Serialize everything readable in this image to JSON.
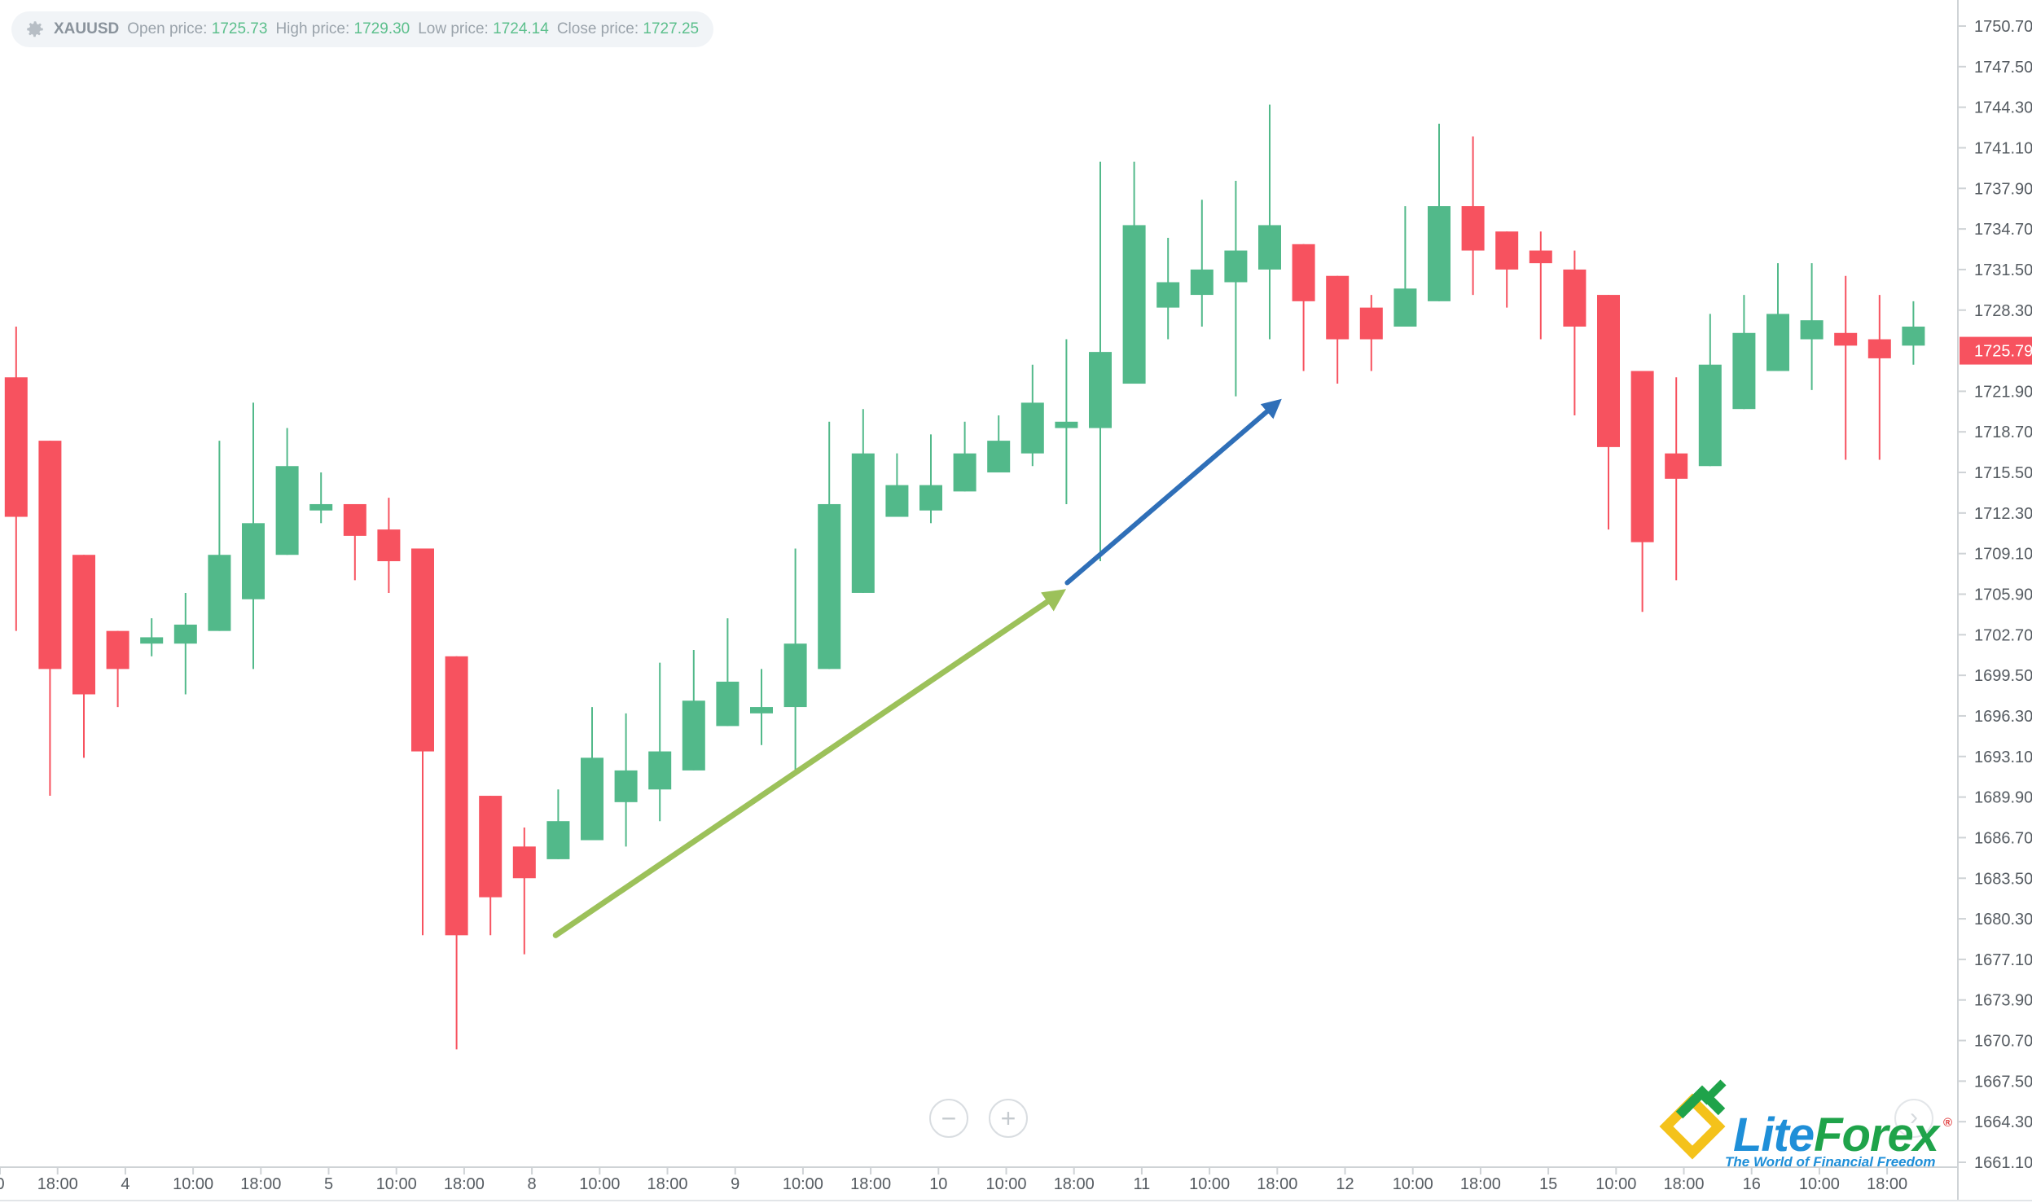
{
  "header": {
    "symbol": "XAUUSD",
    "open_label": "Open price:",
    "open_value": "1725.73",
    "high_label": "High price:",
    "high_value": "1729.30",
    "low_label": "Low price:",
    "low_value": "1724.14",
    "close_label": "Close price:",
    "close_value": "1727.25"
  },
  "colors": {
    "bull": "#52b98a",
    "bear": "#f7525f",
    "green_arrow": "#9cc15a",
    "blue_arrow": "#2f6fb8",
    "axis_text": "#555b61",
    "axis_line": "#cfd3d6"
  },
  "zoom": {
    "minus": "−",
    "plus": "+"
  },
  "nav": {
    "next": "›"
  },
  "brand": {
    "name_a": "Lite",
    "name_b": "Forex",
    "registered": "®",
    "tagline": "The World of Financial Freedom"
  },
  "chart_data": {
    "type": "candlestick",
    "y_axis": {
      "min": 1661.1,
      "max": 1750.7,
      "ticks": [
        "1750.70",
        "1747.50",
        "1744.30",
        "1741.10",
        "1737.90",
        "1734.70",
        "1731.50",
        "1728.30",
        "1725.79",
        "1721.90",
        "1718.70",
        "1715.50",
        "1712.30",
        "1709.10",
        "1705.90",
        "1702.70",
        "1699.50",
        "1696.30",
        "1693.10",
        "1689.90",
        "1686.70",
        "1683.50",
        "1680.30",
        "1677.10",
        "1673.90",
        "1670.70",
        "1667.50",
        "1664.30",
        "1661.10"
      ],
      "current_price": "1725.79",
      "current_price_value": 1725.79
    },
    "x_axis": {
      "labels": [
        "0",
        "18:00",
        "4",
        "10:00",
        "18:00",
        "5",
        "10:00",
        "18:00",
        "8",
        "10:00",
        "18:00",
        "9",
        "10:00",
        "18:00",
        "10",
        "10:00",
        "18:00",
        "11",
        "10:00",
        "18:00",
        "12",
        "10:00",
        "18:00",
        "15",
        "10:00",
        "18:00",
        "16",
        "10:00",
        "18:00"
      ],
      "label_slots": [
        0,
        1.7,
        3.7,
        5.7,
        7.7,
        9.7,
        11.7,
        13.7,
        15.7,
        17.7,
        19.7,
        21.7,
        23.7,
        25.7,
        27.7,
        29.7,
        31.7,
        33.7,
        35.7,
        37.7,
        39.7,
        41.7,
        43.7,
        45.7,
        47.7,
        49.7,
        51.7,
        53.7,
        55.7
      ]
    },
    "candles": [
      {
        "o": 1723.0,
        "h": 1727.0,
        "l": 1703.0,
        "c": 1712.0
      },
      {
        "o": 1718.0,
        "h": 1718.0,
        "l": 1690.0,
        "c": 1700.0
      },
      {
        "o": 1709.0,
        "h": 1709.0,
        "l": 1693.0,
        "c": 1698.0
      },
      {
        "o": 1703.0,
        "h": 1703.0,
        "l": 1697.0,
        "c": 1700.0
      },
      {
        "o": 1702.0,
        "h": 1704.0,
        "l": 1701.0,
        "c": 1702.5
      },
      {
        "o": 1702.0,
        "h": 1706.0,
        "l": 1698.0,
        "c": 1703.5
      },
      {
        "o": 1703.0,
        "h": 1718.0,
        "l": 1703.0,
        "c": 1709.0
      },
      {
        "o": 1705.5,
        "h": 1721.0,
        "l": 1700.0,
        "c": 1711.5
      },
      {
        "o": 1709.0,
        "h": 1719.0,
        "l": 1709.0,
        "c": 1716.0
      },
      {
        "o": 1712.5,
        "h": 1715.5,
        "l": 1711.5,
        "c": 1713.0
      },
      {
        "o": 1713.0,
        "h": 1713.0,
        "l": 1707.0,
        "c": 1710.5
      },
      {
        "o": 1711.0,
        "h": 1713.5,
        "l": 1706.0,
        "c": 1708.5
      },
      {
        "o": 1709.5,
        "h": 1709.5,
        "l": 1679.0,
        "c": 1693.5
      },
      {
        "o": 1701.0,
        "h": 1701.0,
        "l": 1670.0,
        "c": 1679.0
      },
      {
        "o": 1690.0,
        "h": 1690.0,
        "l": 1679.0,
        "c": 1682.0
      },
      {
        "o": 1686.0,
        "h": 1687.5,
        "l": 1677.5,
        "c": 1683.5
      },
      {
        "o": 1685.0,
        "h": 1690.5,
        "l": 1685.0,
        "c": 1688.0
      },
      {
        "o": 1686.5,
        "h": 1697.0,
        "l": 1686.5,
        "c": 1693.0
      },
      {
        "o": 1689.5,
        "h": 1696.5,
        "l": 1686.0,
        "c": 1692.0
      },
      {
        "o": 1690.5,
        "h": 1700.5,
        "l": 1688.0,
        "c": 1693.5
      },
      {
        "o": 1692.0,
        "h": 1701.5,
        "l": 1692.0,
        "c": 1697.5
      },
      {
        "o": 1695.5,
        "h": 1704.0,
        "l": 1695.5,
        "c": 1699.0
      },
      {
        "o": 1696.5,
        "h": 1700.0,
        "l": 1694.0,
        "c": 1697.0
      },
      {
        "o": 1697.0,
        "h": 1709.5,
        "l": 1692.0,
        "c": 1702.0
      },
      {
        "o": 1700.0,
        "h": 1719.5,
        "l": 1700.0,
        "c": 1713.0
      },
      {
        "o": 1706.0,
        "h": 1720.5,
        "l": 1706.0,
        "c": 1717.0
      },
      {
        "o": 1712.0,
        "h": 1717.0,
        "l": 1712.0,
        "c": 1714.5
      },
      {
        "o": 1712.5,
        "h": 1718.5,
        "l": 1711.5,
        "c": 1714.5
      },
      {
        "o": 1714.0,
        "h": 1719.5,
        "l": 1714.0,
        "c": 1717.0
      },
      {
        "o": 1715.5,
        "h": 1720.0,
        "l": 1715.5,
        "c": 1718.0
      },
      {
        "o": 1717.0,
        "h": 1724.0,
        "l": 1716.0,
        "c": 1721.0
      },
      {
        "o": 1719.0,
        "h": 1726.0,
        "l": 1713.0,
        "c": 1719.5
      },
      {
        "o": 1719.0,
        "h": 1740.0,
        "l": 1708.5,
        "c": 1725.0
      },
      {
        "o": 1722.5,
        "h": 1740.0,
        "l": 1722.5,
        "c": 1735.0
      },
      {
        "o": 1728.5,
        "h": 1734.0,
        "l": 1726.0,
        "c": 1730.5
      },
      {
        "o": 1729.5,
        "h": 1737.0,
        "l": 1727.0,
        "c": 1731.5
      },
      {
        "o": 1730.5,
        "h": 1738.5,
        "l": 1721.5,
        "c": 1733.0
      },
      {
        "o": 1731.5,
        "h": 1744.5,
        "l": 1726.0,
        "c": 1735.0
      },
      {
        "o": 1733.5,
        "h": 1733.5,
        "l": 1723.5,
        "c": 1729.0
      },
      {
        "o": 1731.0,
        "h": 1731.0,
        "l": 1722.5,
        "c": 1726.0
      },
      {
        "o": 1728.5,
        "h": 1729.5,
        "l": 1723.5,
        "c": 1726.0
      },
      {
        "o": 1727.0,
        "h": 1736.5,
        "l": 1727.0,
        "c": 1730.0
      },
      {
        "o": 1729.0,
        "h": 1743.0,
        "l": 1729.0,
        "c": 1736.5
      },
      {
        "o": 1736.5,
        "h": 1742.0,
        "l": 1729.5,
        "c": 1733.0
      },
      {
        "o": 1734.5,
        "h": 1734.5,
        "l": 1728.5,
        "c": 1731.5
      },
      {
        "o": 1733.0,
        "h": 1734.5,
        "l": 1726.0,
        "c": 1732.0
      },
      {
        "o": 1731.5,
        "h": 1733.0,
        "l": 1720.0,
        "c": 1727.0
      },
      {
        "o": 1729.5,
        "h": 1729.5,
        "l": 1711.0,
        "c": 1717.5
      },
      {
        "o": 1723.5,
        "h": 1723.5,
        "l": 1704.5,
        "c": 1710.0
      },
      {
        "o": 1717.0,
        "h": 1723.0,
        "l": 1707.0,
        "c": 1715.0
      },
      {
        "o": 1716.0,
        "h": 1728.0,
        "l": 1716.0,
        "c": 1724.0
      },
      {
        "o": 1720.5,
        "h": 1729.5,
        "l": 1720.5,
        "c": 1726.5
      },
      {
        "o": 1723.5,
        "h": 1732.0,
        "l": 1723.5,
        "c": 1728.0
      },
      {
        "o": 1726.0,
        "h": 1732.0,
        "l": 1722.0,
        "c": 1727.5
      },
      {
        "o": 1726.5,
        "h": 1731.0,
        "l": 1716.5,
        "c": 1725.5
      },
      {
        "o": 1726.0,
        "h": 1729.5,
        "l": 1716.5,
        "c": 1724.5
      },
      {
        "o": 1725.5,
        "h": 1729.0,
        "l": 1724.0,
        "c": 1727.0
      }
    ],
    "trend_arrows": [
      {
        "name": "uptrend-green",
        "from": {
          "slot": 16.4,
          "price": 1679.0
        },
        "to": {
          "slot": 31.3,
          "price": 1706.0
        }
      },
      {
        "name": "uptrend-blue",
        "from": {
          "slot": 31.5,
          "price": 1706.8
        },
        "to": {
          "slot": 37.7,
          "price": 1721.0
        }
      }
    ]
  }
}
